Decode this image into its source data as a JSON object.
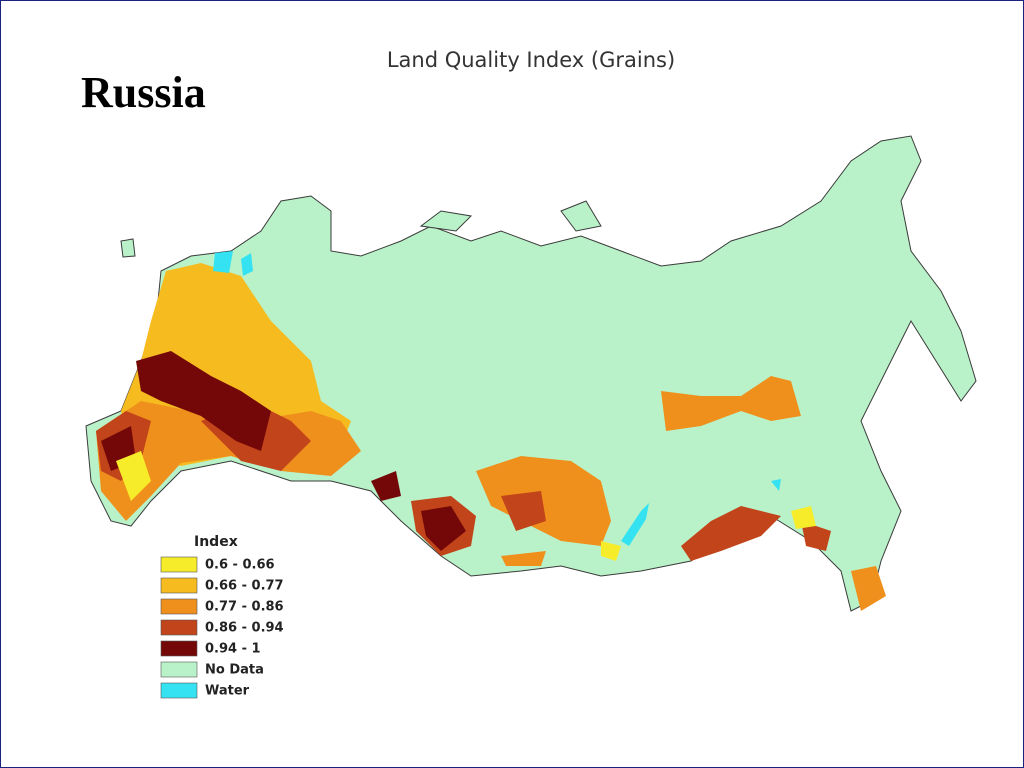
{
  "slide": {
    "title": "Russia"
  },
  "map": {
    "title": "Land Quality Index (Grains)"
  },
  "legend": {
    "title": "Index",
    "items": [
      {
        "label": "0.6 - 0.66",
        "color": "#f7ec2a"
      },
      {
        "label": "0.66 - 0.77",
        "color": "#f5bb1f"
      },
      {
        "label": "0.77 - 0.86",
        "color": "#f0901c"
      },
      {
        "label": "0.86 - 0.94",
        "color": "#c2441a"
      },
      {
        "label": "0.94 - 1",
        "color": "#740808"
      },
      {
        "label": "No Data",
        "color": "#b9f2c8"
      },
      {
        "label": "Water",
        "color": "#35e2f2"
      }
    ]
  }
}
